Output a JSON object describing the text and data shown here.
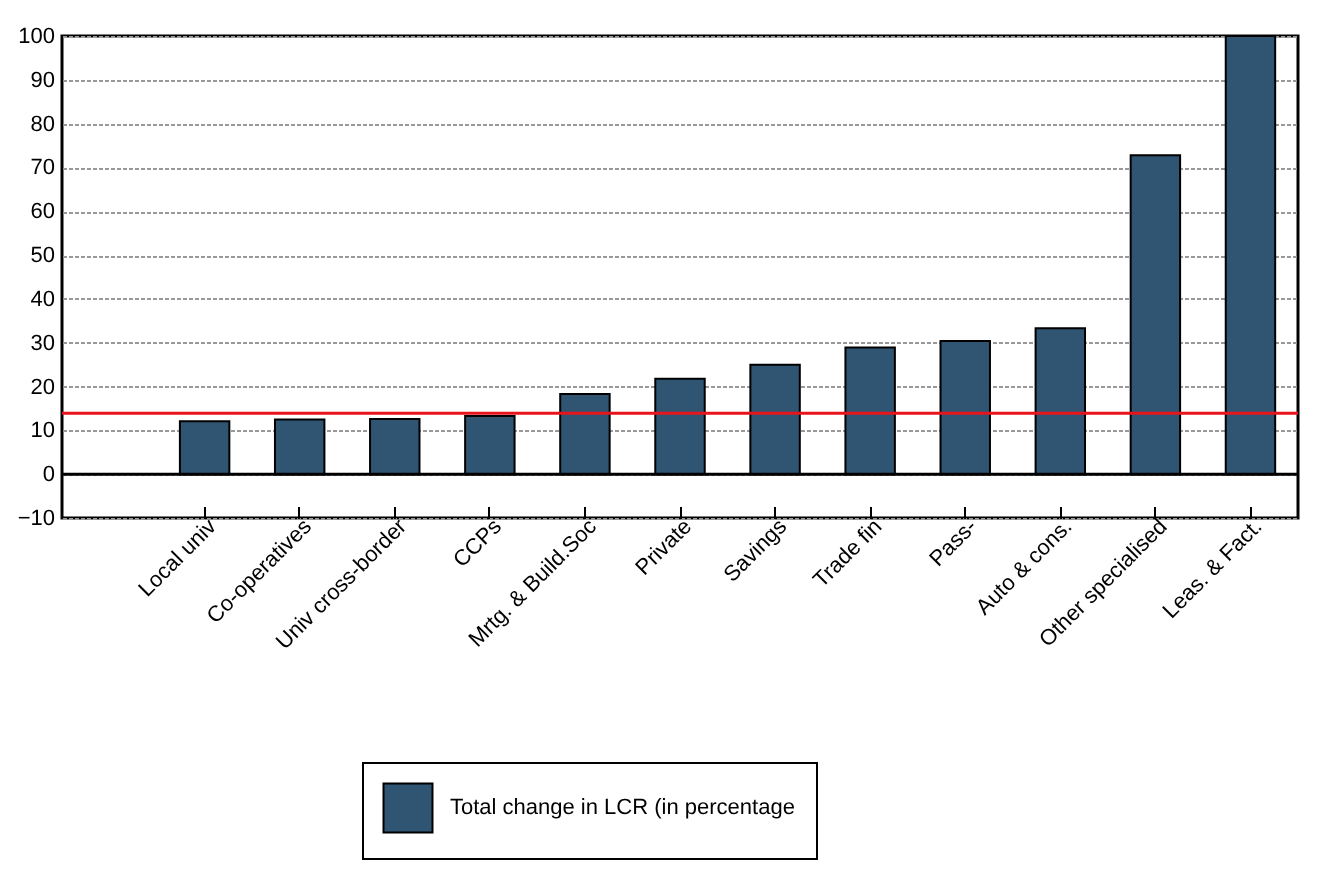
{
  "chart_data": {
    "type": "bar",
    "categories": [
      "Local univ",
      "Co-operatives",
      "Univ cross-border",
      "CCPs",
      "Mrtg. & Build.Soc",
      "Private",
      "Savings",
      "Trade fin",
      "Pass-",
      "Auto & cons.",
      "Other specialised",
      "Leas. & Fact."
    ],
    "series": [
      {
        "name": "Total change in LCR (in percentage",
        "color": "#2f5573",
        "values": [
          12.1,
          12.5,
          12.6,
          13.3,
          18.3,
          21.8,
          25,
          28.9,
          30.4,
          33.3,
          72.8,
          100
        ]
      }
    ],
    "ylim": [
      -10,
      100
    ],
    "yticks": [
      -10,
      0,
      10,
      20,
      30,
      40,
      50,
      60,
      70,
      80,
      90,
      100
    ],
    "grid": "y",
    "legend": "bottom",
    "ref_lines": [
      {
        "axis": "y",
        "value": 13.9,
        "color": "#e8141c"
      }
    ]
  }
}
